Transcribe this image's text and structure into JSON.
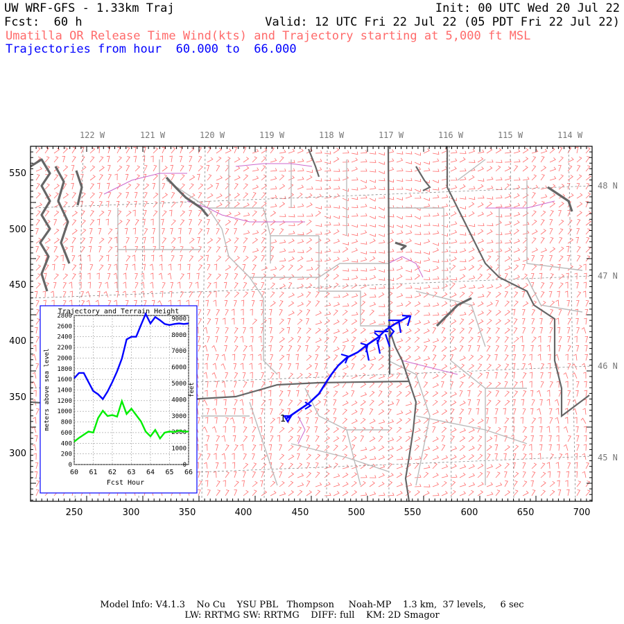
{
  "header": {
    "model_title": "UW WRF-GFS - 1.33km Traj",
    "init": "Init: 00 UTC Wed 20 Jul 22",
    "fcst": "Fcst:  60 h",
    "valid": "Valid: 12 UTC Fri 22 Jul 22 (05 PDT Fri 22 Jul 22)",
    "description": "Umatilla OR Release Time Wind(kts) and Trajectory starting at 5,000 ft MSL",
    "trajectories": "Trajectories from hour  60.000 to  66.000"
  },
  "map": {
    "x_ticks": [
      "250",
      "300",
      "350",
      "400",
      "450",
      "500",
      "550",
      "600",
      "650",
      "700"
    ],
    "y_ticks": [
      "550",
      "500",
      "450",
      "400",
      "350",
      "300"
    ],
    "lon_labels": [
      "122 W",
      "121 W",
      "120 W",
      "119 W",
      "118 W",
      "117 W",
      "116 W",
      "115 W",
      "114 W"
    ],
    "lat_labels": [
      "48 N",
      "47 N",
      "46 N",
      "45 N"
    ],
    "trajectory_start_label": "1",
    "colors": {
      "wind_barbs": "#ff6a6a",
      "trajectory": "#0000ff",
      "coast": "#666666",
      "state_lines": "#777777",
      "county_lines": "#bbbbbb",
      "rivers": "#cc66cc"
    }
  },
  "inset": {
    "title": "Trajectory and Terrain Height",
    "ylabel_left": "meters above sea level",
    "ylabel_right": "feet",
    "xlabel": "Fcst Hour",
    "x_ticks": [
      "60",
      "61",
      "62",
      "63",
      "64",
      "65",
      "66"
    ],
    "y_left_ticks": [
      "0",
      "200",
      "400",
      "600",
      "800",
      "1000",
      "1200",
      "1400",
      "1600",
      "1800",
      "2000",
      "2200",
      "2400",
      "2600",
      "2800"
    ],
    "y_right_ticks": [
      "0",
      "1000",
      "2000",
      "3000",
      "4000",
      "5000",
      "6000",
      "7000",
      "8000",
      "9000"
    ]
  },
  "chart_data": {
    "type": "line",
    "title": "Trajectory and Terrain Height",
    "xlabel": "Fcst Hour",
    "ylabel": "meters above sea level",
    "xlim": [
      60,
      66
    ],
    "ylim": [
      0,
      2800
    ],
    "grid": true,
    "series": [
      {
        "color": "#0000ff",
        "x": [
          60,
          60.25,
          60.5,
          60.75,
          61,
          61.25,
          61.5,
          61.75,
          62,
          62.25,
          62.5,
          62.75,
          63,
          63.25,
          63.5,
          63.75,
          64,
          64.25,
          64.5,
          64.75,
          65,
          65.25,
          65.5,
          65.75,
          66
        ],
        "values": [
          1620,
          1720,
          1720,
          1550,
          1380,
          1320,
          1230,
          1370,
          1550,
          1750,
          1990,
          2350,
          2400,
          2400,
          2620,
          2830,
          2650,
          2770,
          2710,
          2640,
          2620,
          2640,
          2650,
          2640,
          2650
        ]
      },
      {
        "color": "#00ee00",
        "x": [
          60,
          60.25,
          60.5,
          60.75,
          61,
          61.25,
          61.5,
          61.75,
          62,
          62.25,
          62.5,
          62.75,
          63,
          63.25,
          63.5,
          63.75,
          64,
          64.25,
          64.5,
          64.75,
          65,
          65.25,
          65.5,
          65.75,
          66
        ],
        "values": [
          430,
          500,
          560,
          620,
          600,
          870,
          1010,
          910,
          930,
          900,
          1190,
          950,
          1050,
          930,
          810,
          620,
          530,
          650,
          490,
          600,
          620,
          610,
          640,
          620,
          620
        ]
      }
    ]
  }
}
